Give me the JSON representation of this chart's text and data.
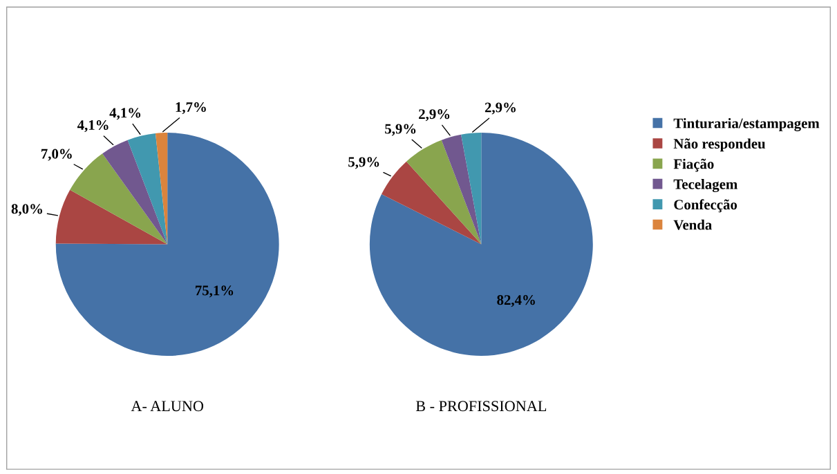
{
  "chart_data": [
    {
      "type": "pie",
      "title": "A- ALUNO",
      "categories": [
        "Tinturaria/estampagem",
        "Não respondeu",
        "Fiação",
        "Tecelagem",
        "Confecção",
        "Venda"
      ],
      "values": [
        75.1,
        8.0,
        7.0,
        4.1,
        4.1,
        1.7
      ],
      "colors": [
        "#4572a7",
        "#aa4643",
        "#89a54e",
        "#71588f",
        "#4198af",
        "#db843d"
      ],
      "value_labels": [
        "75,1%",
        "8,0%",
        "7,0%",
        "4,1%",
        "4,1%",
        "1,7%"
      ],
      "legend": "right"
    },
    {
      "type": "pie",
      "title": "B - PROFISSIONAL",
      "categories": [
        null,
        null,
        null,
        null,
        null,
        null
      ],
      "values": [
        82.4,
        5.9,
        5.9,
        2.9,
        2.9,
        0
      ],
      "colors": [
        "#4572a7",
        "#aa4643",
        "#89a54e",
        "#71588f",
        "#4198af",
        "#db843d"
      ],
      "value_labels": [
        "82,4%",
        "5,9%",
        "5,9%",
        "2,9%",
        "2,9%",
        null
      ]
    }
  ]
}
